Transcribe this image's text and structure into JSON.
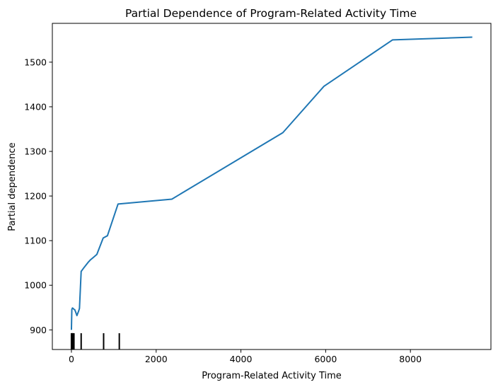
{
  "chart_data": {
    "type": "line",
    "title": "Partial Dependence of Program-Related Activity Time",
    "xlabel": "Program-Related Activity Time",
    "ylabel": "Partial dependence",
    "xlim": [
      -450,
      9900
    ],
    "ylim": [
      856,
      1587
    ],
    "xticks": [
      0,
      2000,
      4000,
      6000,
      8000
    ],
    "xtick_labels": [
      "0",
      "2000",
      "4000",
      "6000",
      "8000"
    ],
    "yticks": [
      900,
      1000,
      1100,
      1200,
      1300,
      1400,
      1500
    ],
    "ytick_labels": [
      "900",
      "1000",
      "1100",
      "1200",
      "1300",
      "1400",
      "1500"
    ],
    "grid": false,
    "series": [
      {
        "color": "#1f77b4",
        "x": [
          0,
          10,
          25,
          40,
          60,
          80,
          100,
          130,
          170,
          190,
          230,
          300,
          400,
          450,
          500,
          600,
          750,
          850,
          1100,
          2370,
          4990,
          5960,
          7580,
          9460
        ],
        "y": [
          900,
          946,
          949,
          948,
          946,
          945,
          940,
          932,
          942,
          948,
          1031,
          1040,
          1052,
          1057,
          1061,
          1069,
          1106,
          1111,
          1182,
          1193,
          1342,
          1446,
          1550,
          1556
        ]
      }
    ],
    "rug": {
      "color": "#000000",
      "x": [
        0,
        5,
        10,
        15,
        20,
        30,
        40,
        50,
        60,
        230,
        760,
        1130
      ]
    }
  }
}
